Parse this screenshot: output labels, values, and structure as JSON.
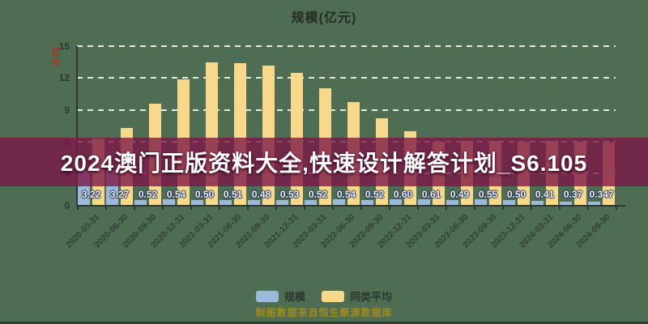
{
  "page": {
    "background_color": "#4e6d52"
  },
  "chart_data": {
    "type": "bar",
    "title": "规模(亿元)",
    "y_axis_label": "亿元",
    "ylim": [
      0,
      15
    ],
    "yticks": [
      0,
      3,
      6,
      9,
      12,
      15
    ],
    "grid": "horizontal dashed white lines",
    "legend_position": "bottom-center",
    "categories": [
      "2020-03-31",
      "2020-06-30",
      "2020-09-30",
      "2020-12-31",
      "2021-03-31",
      "2021-06-30",
      "2021-09-30",
      "2021-12-31",
      "2022-03-31",
      "2022-06-30",
      "2022-09-30",
      "2022-12-31",
      "2023-03-31",
      "2023-06-30",
      "2023-09-30",
      "2023-12-31",
      "2024-03-31",
      "2024-06-30",
      "2024-09-30"
    ],
    "series": [
      {
        "name": "规模",
        "color": "#9cb8da",
        "values": [
          3.22,
          3.27,
          0.52,
          0.54,
          0.5,
          0.51,
          0.48,
          0.53,
          0.52,
          0.54,
          0.52,
          0.6,
          0.61,
          0.49,
          0.55,
          0.5,
          0.41,
          0.37,
          0.347
        ],
        "value_labels": [
          "3.22",
          "3.27",
          "0.52",
          "0.54",
          "0.50",
          "0.51",
          "0.48",
          "0.53",
          "0.52",
          "0.54",
          "0.52",
          "0.60",
          "0.61",
          "0.49",
          "0.55",
          "0.50",
          "0.41",
          "0.37",
          "0.347"
        ]
      },
      {
        "name": "同类平均",
        "color": "#f8d88b",
        "values": [
          6.3,
          7.3,
          9.6,
          11.9,
          13.5,
          13.4,
          13.2,
          12.5,
          11.0,
          9.7,
          8.2,
          7.0,
          6.0,
          6.1,
          6.1,
          6.0,
          6.1,
          6.0,
          5.9
        ]
      }
    ]
  },
  "overlay_banner": {
    "text": "2024澳门正版资料大全,快速设计解答计划_S6.105",
    "background_color": "#7c1545",
    "text_color": "#ffffff"
  },
  "footer": {
    "source_note": "制图数据来自恒生聚源数据库",
    "color": "#a38b1f"
  }
}
